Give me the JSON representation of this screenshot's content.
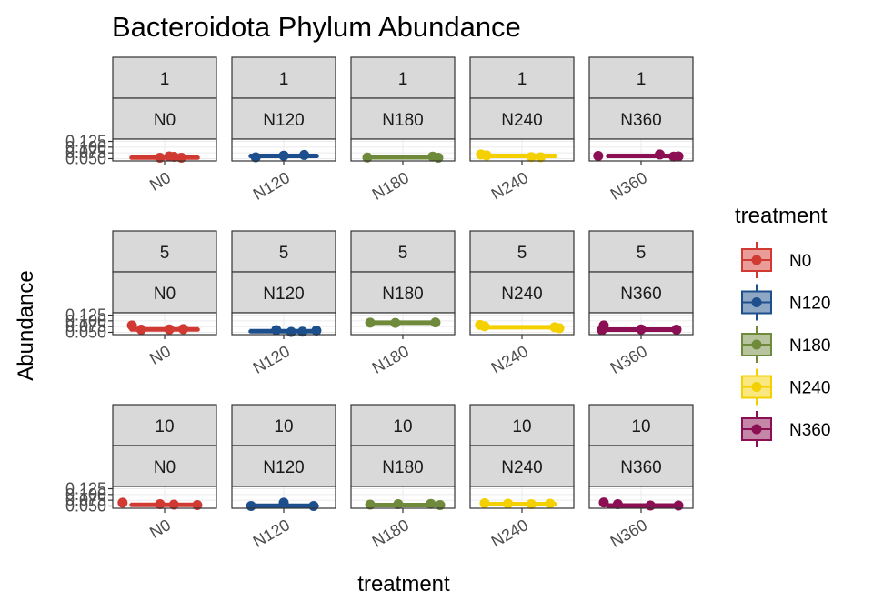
{
  "chart_data": {
    "type": "boxplot-faceted",
    "title": "Bacteroidota Phylum Abundance",
    "xlabel": "treatment",
    "ylabel": "Abundance",
    "y_ticks": [
      "0.050",
      "0.075",
      "0.100",
      "0.125"
    ],
    "ylim": [
      0.04,
      0.135
    ],
    "treatments": [
      "N0",
      "N120",
      "N180",
      "N240",
      "N360"
    ],
    "rows": [
      "1",
      "5",
      "10"
    ],
    "colors": {
      "N0": "#d03a32",
      "N120": "#1d4f8c",
      "N180": "#6f8a3b",
      "N240": "#f4d000",
      "N360": "#8b0f52"
    },
    "fills": {
      "N0": "#e99c98",
      "N120": "#8ea7c5",
      "N180": "#b7c49d",
      "N240": "#f9e780",
      "N360": "#c587a8"
    },
    "legend": {
      "title": "treatment",
      "position": "right"
    },
    "panels": [
      {
        "row": "1",
        "treatment": "N0",
        "median": 0.055,
        "q1": 0.054,
        "q3": 0.056,
        "points": [
          [
            -0.05,
            0.054
          ],
          [
            0.05,
            0.06
          ],
          [
            0.1,
            0.058
          ],
          [
            0.18,
            0.054
          ]
        ]
      },
      {
        "row": "1",
        "treatment": "N120",
        "median": 0.062,
        "q1": 0.061,
        "q3": 0.063,
        "points": [
          [
            -0.3,
            0.056
          ],
          [
            0.0,
            0.063
          ],
          [
            0.22,
            0.066
          ]
        ]
      },
      {
        "row": "1",
        "treatment": "N180",
        "median": 0.056,
        "q1": 0.055,
        "q3": 0.057,
        "points": [
          [
            -0.38,
            0.055
          ],
          [
            0.32,
            0.059
          ],
          [
            0.38,
            0.054
          ]
        ]
      },
      {
        "row": "1",
        "treatment": "N240",
        "median": 0.062,
        "q1": 0.061,
        "q3": 0.063,
        "points": [
          [
            -0.44,
            0.068
          ],
          [
            -0.38,
            0.064
          ],
          [
            0.1,
            0.057
          ],
          [
            0.2,
            0.056
          ]
        ]
      },
      {
        "row": "1",
        "treatment": "N360",
        "median": 0.062,
        "q1": 0.061,
        "q3": 0.063,
        "points": [
          [
            -0.46,
            0.062
          ],
          [
            0.2,
            0.068
          ],
          [
            0.35,
            0.059
          ],
          [
            0.4,
            0.06
          ]
        ]
      },
      {
        "row": "5",
        "treatment": "N0",
        "median": 0.063,
        "q1": 0.062,
        "q3": 0.064,
        "points": [
          [
            -0.35,
            0.08
          ],
          [
            -0.25,
            0.062
          ],
          [
            0.05,
            0.063
          ],
          [
            0.2,
            0.064
          ]
        ]
      },
      {
        "row": "5",
        "treatment": "N120",
        "median": 0.055,
        "q1": 0.054,
        "q3": 0.056,
        "points": [
          [
            -0.08,
            0.06
          ],
          [
            0.08,
            0.052
          ],
          [
            0.2,
            0.053
          ],
          [
            0.35,
            0.058
          ]
        ]
      },
      {
        "row": "5",
        "treatment": "N180",
        "median": 0.092,
        "q1": 0.091,
        "q3": 0.093,
        "points": [
          [
            -0.35,
            0.092
          ],
          [
            -0.08,
            0.091
          ],
          [
            0.35,
            0.093
          ]
        ]
      },
      {
        "row": "5",
        "treatment": "N240",
        "median": 0.072,
        "q1": 0.071,
        "q3": 0.073,
        "points": [
          [
            -0.45,
            0.082
          ],
          [
            -0.4,
            0.076
          ],
          [
            0.35,
            0.072
          ],
          [
            0.4,
            0.068
          ]
        ]
      },
      {
        "row": "5",
        "treatment": "N360",
        "median": 0.062,
        "q1": 0.061,
        "q3": 0.063,
        "points": [
          [
            -0.4,
            0.08
          ],
          [
            -0.42,
            0.06
          ],
          [
            0.0,
            0.063
          ],
          [
            0.38,
            0.062
          ]
        ]
      },
      {
        "row": "10",
        "treatment": "N0",
        "median": 0.055,
        "q1": 0.054,
        "q3": 0.056,
        "points": [
          [
            -0.45,
            0.064
          ],
          [
            -0.05,
            0.058
          ],
          [
            0.1,
            0.056
          ],
          [
            0.35,
            0.054
          ]
        ]
      },
      {
        "row": "10",
        "treatment": "N120",
        "median": 0.051,
        "q1": 0.05,
        "q3": 0.052,
        "points": [
          [
            0.0,
            0.064
          ],
          [
            -0.35,
            0.05
          ],
          [
            0.32,
            0.05
          ]
        ]
      },
      {
        "row": "10",
        "treatment": "N180",
        "median": 0.054,
        "q1": 0.053,
        "q3": 0.055,
        "points": [
          [
            -0.35,
            0.056
          ],
          [
            -0.05,
            0.058
          ],
          [
            0.3,
            0.059
          ],
          [
            0.4,
            0.054
          ]
        ]
      },
      {
        "row": "10",
        "treatment": "N240",
        "median": 0.058,
        "q1": 0.057,
        "q3": 0.059,
        "points": [
          [
            -0.4,
            0.062
          ],
          [
            -0.15,
            0.06
          ],
          [
            0.1,
            0.058
          ],
          [
            0.3,
            0.06
          ]
        ]
      },
      {
        "row": "10",
        "treatment": "N360",
        "median": 0.052,
        "q1": 0.051,
        "q3": 0.053,
        "points": [
          [
            -0.4,
            0.065
          ],
          [
            -0.25,
            0.058
          ],
          [
            0.1,
            0.052
          ],
          [
            0.4,
            0.052
          ]
        ]
      }
    ]
  }
}
